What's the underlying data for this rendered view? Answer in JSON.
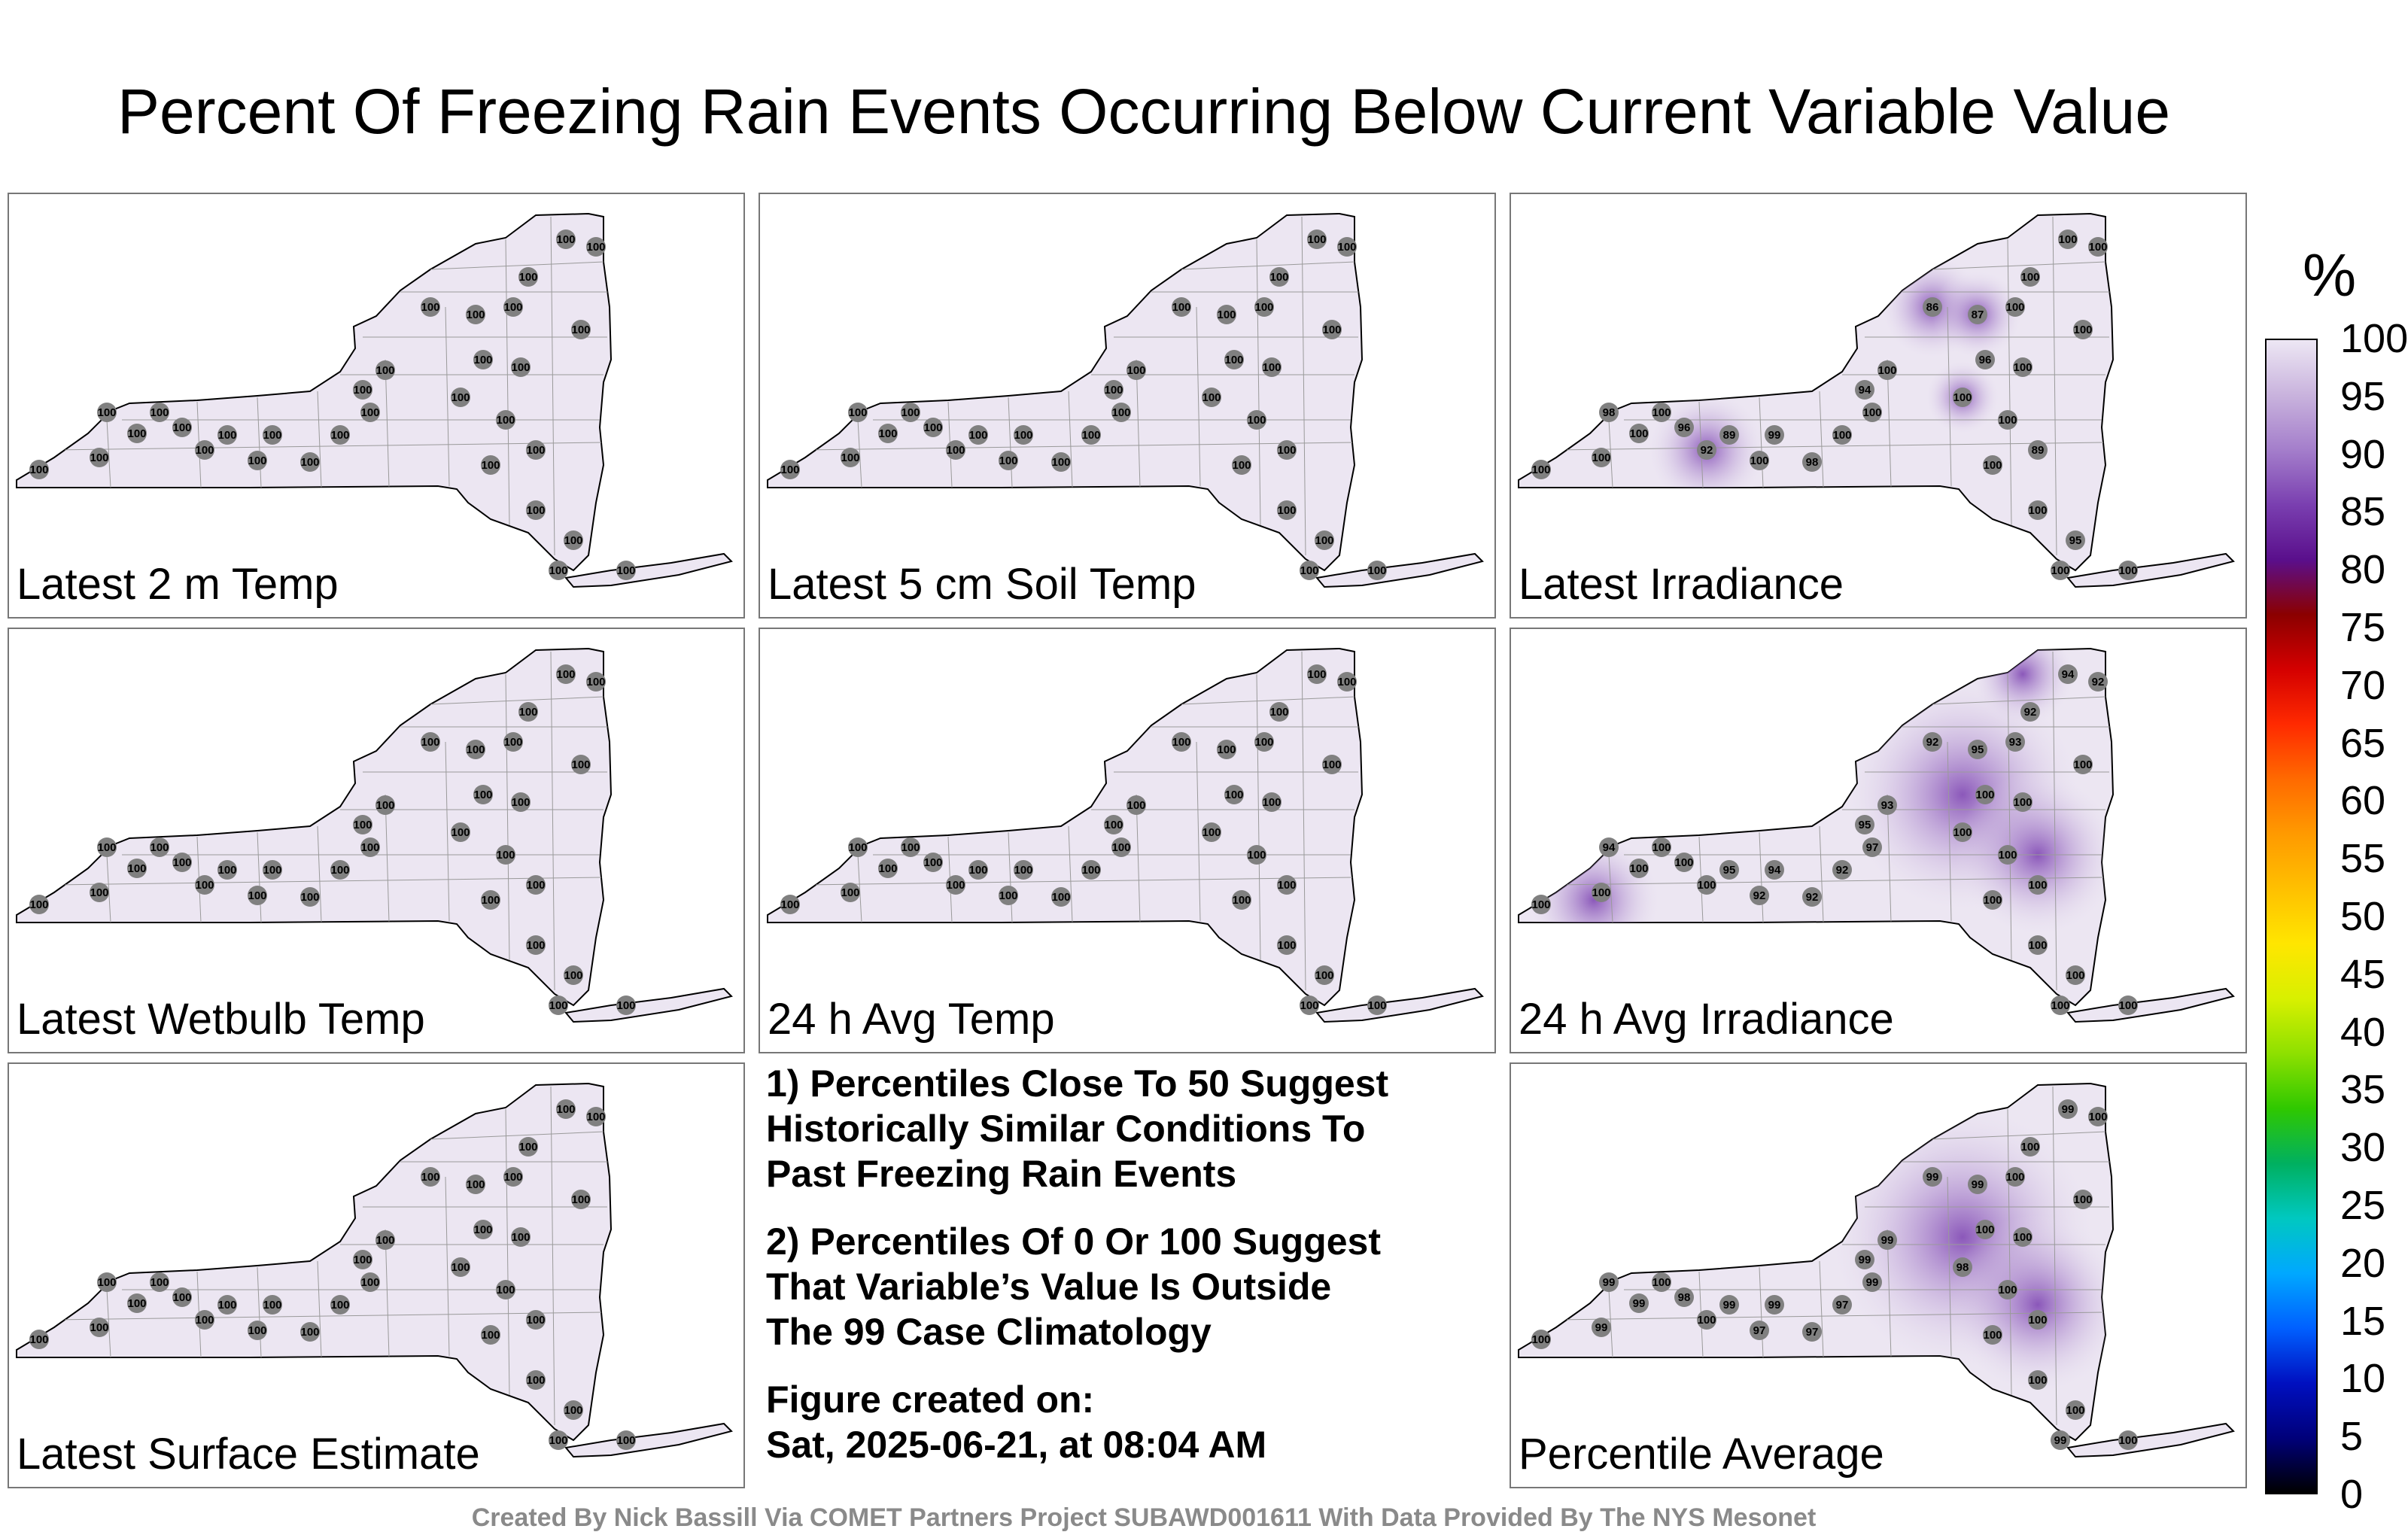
{
  "title": "Percent Of Freezing Rain Events Occurring Below Current Variable Value",
  "colors": {
    "map_fill": "#ece6f2",
    "station_dot": "#808080",
    "state_outline": "#000000"
  },
  "panels": [
    {
      "label": "Latest 2 m Temp",
      "values": [
        "100",
        "100",
        "100",
        "100",
        "100",
        "100",
        "100",
        "100",
        "100",
        "100",
        "100",
        "100",
        "100",
        "100",
        "100",
        "100",
        "100",
        "100",
        "100",
        "100",
        "100",
        "100",
        "100",
        "100",
        "100",
        "100",
        "100",
        "100",
        "100",
        "100",
        "100",
        "100"
      ]
    },
    {
      "label": "Latest 5 cm Soil Temp",
      "values": [
        "100",
        "100",
        "100",
        "100",
        "100",
        "100",
        "100",
        "100",
        "100",
        "100",
        "100",
        "100",
        "100",
        "100",
        "100",
        "100",
        "100",
        "100",
        "100",
        "100",
        "100",
        "100",
        "100",
        "100",
        "100",
        "100",
        "100",
        "100",
        "100",
        "100",
        "100",
        "100"
      ]
    },
    {
      "label": "Latest Irradiance",
      "values": [
        "100",
        "98",
        "100",
        "100",
        "100",
        "96",
        "92",
        "89",
        "99",
        "100",
        "98",
        "100",
        "100",
        "94",
        "100",
        "86",
        "87",
        "100",
        "100",
        "100",
        "100",
        "100",
        "96",
        "100",
        "100",
        "89",
        "100",
        "100",
        "95",
        "100",
        "100",
        "100"
      ]
    },
    {
      "label": "Latest Wetbulb Temp",
      "values": [
        "100",
        "100",
        "100",
        "100",
        "100",
        "100",
        "100",
        "100",
        "100",
        "100",
        "100",
        "100",
        "100",
        "100",
        "100",
        "100",
        "100",
        "100",
        "100",
        "100",
        "100",
        "100",
        "100",
        "100",
        "100",
        "100",
        "100",
        "100",
        "100",
        "100",
        "100",
        "100"
      ]
    },
    {
      "label": "24 h Avg Temp",
      "values": [
        "100",
        "100",
        "100",
        "100",
        "100",
        "100",
        "100",
        "100",
        "100",
        "100",
        "100",
        "100",
        "100",
        "100",
        "100",
        "100",
        "100",
        "100",
        "100",
        "100",
        "100",
        "100",
        "100",
        "100",
        "100",
        "100",
        "100",
        "100",
        "100",
        "100",
        "100",
        "100"
      ]
    },
    {
      "label": "24 h Avg Irradiance",
      "values": [
        "100",
        "94",
        "100",
        "100",
        "100",
        "100",
        "100",
        "95",
        "94",
        "92",
        "92",
        "92",
        "97",
        "95",
        "93",
        "92",
        "95",
        "93",
        "92",
        "94",
        "92",
        "100",
        "100",
        "100",
        "100",
        "100",
        "100",
        "100",
        "100",
        "100",
        "100",
        "100"
      ]
    },
    {
      "label": "Latest Surface Estimate",
      "values": [
        "100",
        "100",
        "100",
        "100",
        "100",
        "100",
        "100",
        "100",
        "100",
        "100",
        "100",
        "100",
        "100",
        "100",
        "100",
        "100",
        "100",
        "100",
        "100",
        "100",
        "100",
        "100",
        "100",
        "100",
        "100",
        "100",
        "100",
        "100",
        "100",
        "100",
        "100",
        "100"
      ]
    },
    {
      "label": "Percentile Average",
      "values": [
        "100",
        "99",
        "100",
        "99",
        "99",
        "98",
        "100",
        "99",
        "99",
        "97",
        "97",
        "97",
        "99",
        "99",
        "99",
        "99",
        "99",
        "100",
        "100",
        "99",
        "100",
        "100",
        "100",
        "98",
        "100",
        "100",
        "100",
        "100",
        "100",
        "99",
        "100",
        "100"
      ]
    }
  ],
  "notes": {
    "note1": [
      "1) Percentiles Close To 50 Suggest",
      "Historically Similar Conditions To",
      "Past Freezing Rain Events"
    ],
    "note2": [
      "2) Percentiles Of 0 Or 100 Suggest",
      "That Variable’s Value Is Outside",
      "The 99 Case Climatology"
    ],
    "created": [
      "Figure created on:",
      "Sat, 2025-06-21, at 08:04 AM"
    ]
  },
  "colorbar": {
    "unit": "%",
    "ticks": [
      "100",
      "95",
      "90",
      "85",
      "80",
      "75",
      "70",
      "65",
      "60",
      "55",
      "50",
      "45",
      "40",
      "35",
      "30",
      "25",
      "20",
      "15",
      "10",
      "5",
      "0"
    ],
    "colors": [
      "#ede7f4",
      "#c9b3dd",
      "#a47ecb",
      "#7a3fb0",
      "#5a0f8c",
      "#8b0000",
      "#d40000",
      "#ff2a00",
      "#ff6a00",
      "#ff9a00",
      "#ffc000",
      "#ffe600",
      "#d8f000",
      "#8ee000",
      "#2fc800",
      "#00b060",
      "#00c8c0",
      "#00a8ff",
      "#0060ff",
      "#0010c0",
      "#00007a",
      "#000000"
    ]
  },
  "footer": "Created By Nick Bassill Via COMET Partners Project SUBAWD001611 With Data Provided By The NYS Mesonet"
}
